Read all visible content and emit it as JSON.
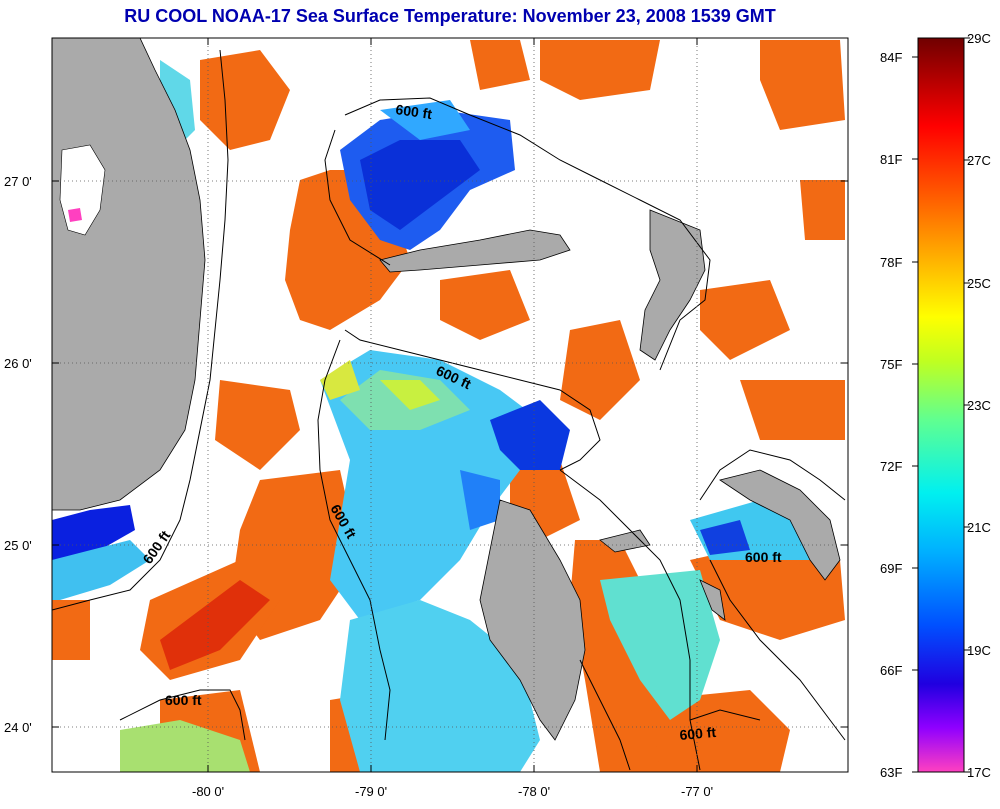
{
  "title": "RU COOL  NOAA-17  Sea Surface Temperature:  November 23, 2008 1539 GMT",
  "axes": {
    "lon_ticks": [
      "-80 0'",
      "-79 0'",
      "-78 0'",
      "-77 0'"
    ],
    "lat_ticks": [
      "27 0'",
      "26 0'",
      "25 0'",
      "24 0'"
    ],
    "lon_range": [
      -80.95,
      -76.05
    ],
    "lat_range": [
      23.7,
      27.8
    ]
  },
  "contour_label": "600 ft",
  "colorbar": {
    "fahrenheit": [
      "84F",
      "81F",
      "78F",
      "75F",
      "72F",
      "69F",
      "66F",
      "63F"
    ],
    "celsius": [
      "29C",
      "27C",
      "25C",
      "23C",
      "21C",
      "19C",
      "17C"
    ],
    "range_c": [
      17,
      29
    ]
  },
  "colors": {
    "land": "#aaaaaa",
    "water_no_data": "#ffffff",
    "title": "#0000b0"
  }
}
